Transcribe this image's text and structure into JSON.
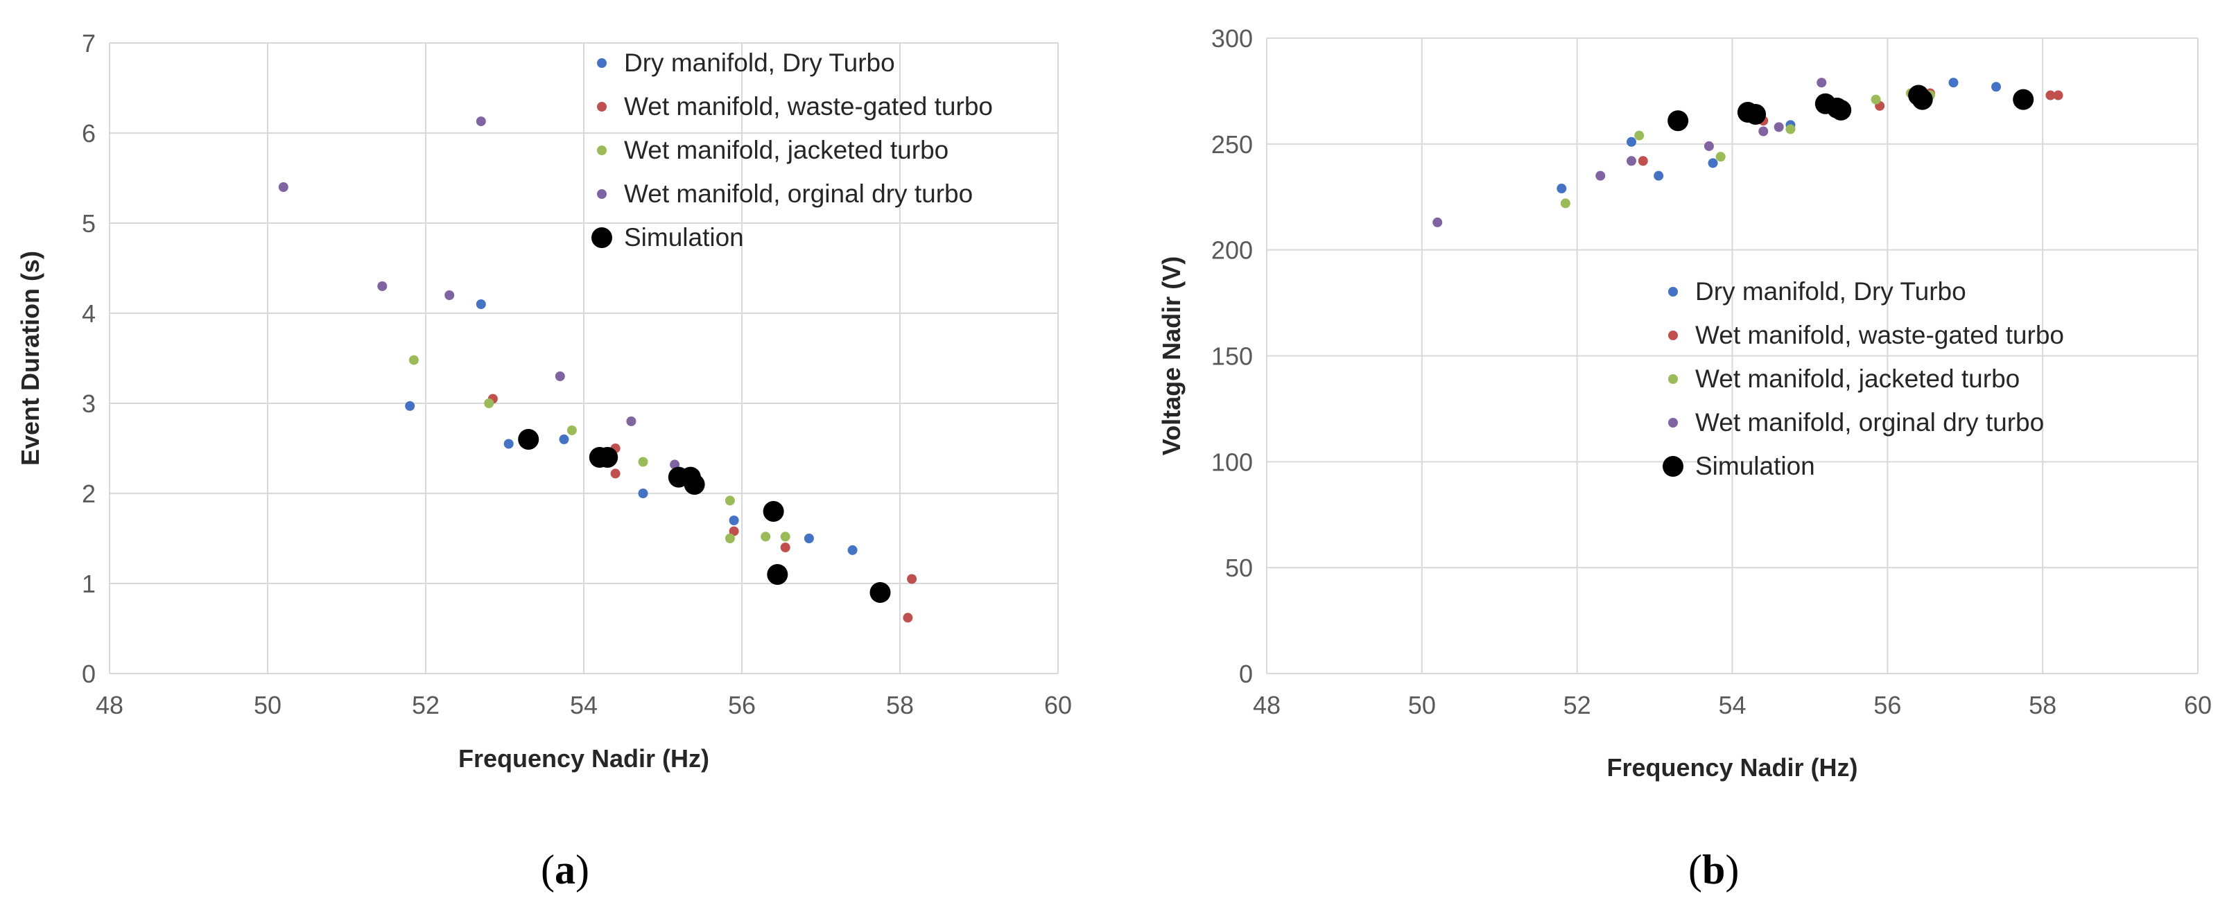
{
  "colors": {
    "dry": "#4472c4",
    "waste": "#c0504d",
    "jacket": "#9bbb59",
    "orig": "#8064a2",
    "sim": "#000000"
  },
  "chart_data": [
    {
      "type": "scatter",
      "title": "",
      "xlabel": "Frequency Nadir (Hz)",
      "ylabel": "Event Duration (s)",
      "xlim": [
        48,
        60
      ],
      "ylim": [
        0,
        7
      ],
      "xticks": [
        48,
        50,
        52,
        54,
        56,
        58,
        60
      ],
      "yticks": [
        0,
        1,
        2,
        3,
        4,
        5,
        6,
        7
      ],
      "grid": true,
      "legend_position": "top-right",
      "caption": {
        "open": "(",
        "letter": "a",
        "close": ")"
      },
      "series": [
        {
          "name": "Dry manifold, Dry Turbo",
          "color_key": "dry",
          "size": "small",
          "points": [
            [
              51.8,
              2.97
            ],
            [
              52.7,
              4.1
            ],
            [
              53.05,
              2.55
            ],
            [
              53.75,
              2.6
            ],
            [
              54.75,
              2.0
            ],
            [
              55.9,
              1.7
            ],
            [
              56.85,
              1.5
            ],
            [
              57.4,
              1.37
            ]
          ]
        },
        {
          "name": "Wet manifold, waste-gated turbo",
          "color_key": "waste",
          "size": "small",
          "points": [
            [
              52.85,
              3.05
            ],
            [
              54.4,
              2.5
            ],
            [
              54.4,
              2.22
            ],
            [
              55.9,
              1.58
            ],
            [
              56.55,
              1.4
            ],
            [
              58.1,
              0.62
            ],
            [
              58.15,
              1.05
            ]
          ]
        },
        {
          "name": "Wet manifold, jacketed turbo",
          "color_key": "jacket",
          "size": "small",
          "points": [
            [
              51.85,
              3.48
            ],
            [
              52.8,
              3.0
            ],
            [
              53.85,
              2.7
            ],
            [
              54.75,
              2.35
            ],
            [
              55.85,
              1.92
            ],
            [
              55.85,
              1.5
            ],
            [
              56.3,
              1.52
            ],
            [
              56.55,
              1.52
            ]
          ]
        },
        {
          "name": "Wet manifold, orginal dry turbo",
          "color_key": "orig",
          "size": "small",
          "points": [
            [
              50.2,
              5.4
            ],
            [
              51.45,
              4.3
            ],
            [
              52.3,
              4.2
            ],
            [
              52.7,
              6.13
            ],
            [
              53.7,
              3.3
            ],
            [
              54.6,
              2.8
            ],
            [
              55.15,
              2.32
            ]
          ]
        },
        {
          "name": "Simulation",
          "color_key": "sim",
          "size": "large",
          "points": [
            [
              53.3,
              2.6
            ],
            [
              54.2,
              2.4
            ],
            [
              54.3,
              2.4
            ],
            [
              55.2,
              2.18
            ],
            [
              55.35,
              2.18
            ],
            [
              55.4,
              2.1
            ],
            [
              56.4,
              1.8
            ],
            [
              56.45,
              1.1
            ],
            [
              57.75,
              0.9
            ]
          ]
        }
      ]
    },
    {
      "type": "scatter",
      "title": "",
      "xlabel": "Frequency Nadir (Hz)",
      "ylabel": "Voltage Nadir (V)",
      "xlim": [
        48,
        60
      ],
      "ylim": [
        0,
        300
      ],
      "xticks": [
        48,
        50,
        52,
        54,
        56,
        58,
        60
      ],
      "yticks": [
        0,
        50,
        100,
        150,
        200,
        250,
        300
      ],
      "grid": true,
      "legend_position": "center-right",
      "caption": {
        "open": "(",
        "letter": "b",
        "close": ")"
      },
      "series": [
        {
          "name": "Dry manifold, Dry Turbo",
          "color_key": "dry",
          "size": "small",
          "points": [
            [
              51.8,
              229
            ],
            [
              52.7,
              251
            ],
            [
              53.05,
              235
            ],
            [
              53.75,
              241
            ],
            [
              54.75,
              259
            ],
            [
              56.85,
              279
            ],
            [
              57.4,
              277
            ]
          ]
        },
        {
          "name": "Wet manifold, waste-gated turbo",
          "color_key": "waste",
          "size": "small",
          "points": [
            [
              52.85,
              242
            ],
            [
              54.4,
              261
            ],
            [
              55.9,
              268
            ],
            [
              56.55,
              274
            ],
            [
              58.1,
              273
            ],
            [
              58.2,
              273
            ]
          ]
        },
        {
          "name": "Wet manifold, jacketed turbo",
          "color_key": "jacket",
          "size": "small",
          "points": [
            [
              51.85,
              222
            ],
            [
              52.8,
              254
            ],
            [
              53.85,
              244
            ],
            [
              54.75,
              257
            ],
            [
              55.85,
              271
            ],
            [
              56.3,
              274
            ],
            [
              56.55,
              273
            ]
          ]
        },
        {
          "name": "Wet manifold, orginal dry turbo",
          "color_key": "orig",
          "size": "small",
          "points": [
            [
              50.2,
              213
            ],
            [
              52.3,
              235
            ],
            [
              52.7,
              242
            ],
            [
              53.7,
              249
            ],
            [
              54.4,
              256
            ],
            [
              54.6,
              258
            ],
            [
              55.15,
              279
            ]
          ]
        },
        {
          "name": "Simulation",
          "color_key": "sim",
          "size": "large",
          "points": [
            [
              53.3,
              261
            ],
            [
              54.2,
              265
            ],
            [
              54.3,
              264
            ],
            [
              55.2,
              269
            ],
            [
              55.35,
              267
            ],
            [
              55.4,
              266
            ],
            [
              56.4,
              273
            ],
            [
              56.45,
              271
            ],
            [
              57.75,
              271
            ]
          ]
        }
      ]
    }
  ]
}
